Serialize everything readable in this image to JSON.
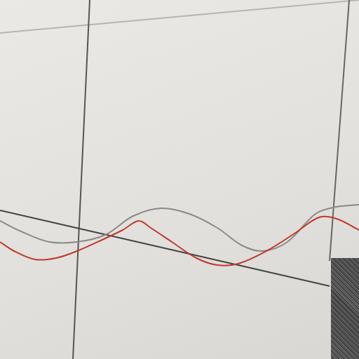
{
  "chart_data": {
    "type": "line",
    "xlim": [
      0,
      512
    ],
    "ylim": [
      0,
      512
    ],
    "tick_labels": false,
    "grid": false,
    "series": [
      {
        "color": "#c0392b",
        "x": [
          0,
          20,
          50,
          80,
          110,
          150,
          175,
          198,
          215,
          245,
          280,
          310,
          340,
          380,
          420,
          455,
          480,
          512
        ],
        "values": [
          167,
          154,
          142,
          144,
          154,
          172,
          184,
          197,
          187,
          167,
          144,
          134,
          136,
          154,
          179,
          202,
          200,
          184
        ]
      },
      {
        "color": "#8a8a8a",
        "x": [
          0,
          30,
          70,
          110,
          150,
          190,
          230,
          270,
          310,
          345,
          375,
          410,
          450,
          480,
          512
        ],
        "values": [
          197,
          182,
          167,
          167,
          177,
          204,
          215,
          207,
          187,
          162,
          154,
          167,
          207,
          217,
          220
        ]
      },
      {
        "color": "#444444",
        "x": [
          0,
          470
        ],
        "values": [
          212,
          104
        ]
      },
      {
        "color": "#555555",
        "x": [
          128,
          104
        ],
        "values": [
          512,
          0
        ]
      },
      {
        "color": "#666666",
        "x": [
          498,
          470
        ],
        "values": [
          512,
          140
        ]
      },
      {
        "color": "#b5b5b5",
        "x": [
          0,
          512
        ],
        "values": [
          465,
          512
        ]
      }
    ]
  }
}
